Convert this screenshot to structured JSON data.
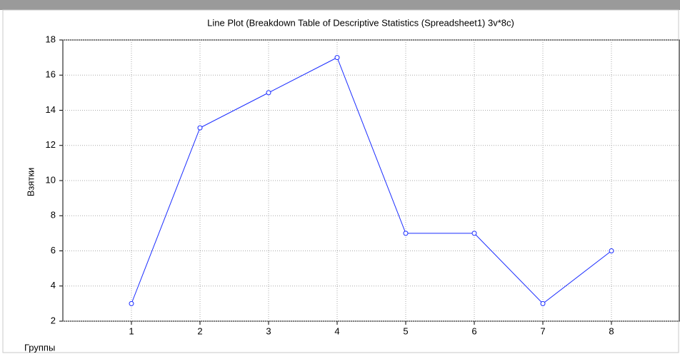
{
  "chart_data": {
    "type": "line",
    "title": "Line Plot (Breakdown Table of Descriptive Statistics (Spreadsheet1) 3v*8c)",
    "x_label": "Группы",
    "y_label": "Взятки",
    "x": [
      1,
      2,
      3,
      4,
      5,
      6,
      7,
      8
    ],
    "series": [
      {
        "color": "#1a2cff",
        "values": [
          3,
          13,
          15,
          17,
          7,
          7,
          3,
          6
        ]
      }
    ],
    "xlim": [
      0,
      9
    ],
    "xticks": [
      1,
      2,
      3,
      4,
      5,
      6,
      7,
      8
    ],
    "ylim": [
      2,
      18
    ],
    "yticks": [
      2,
      4,
      6,
      8,
      10,
      12,
      14,
      16,
      18
    ],
    "grid": true
  }
}
